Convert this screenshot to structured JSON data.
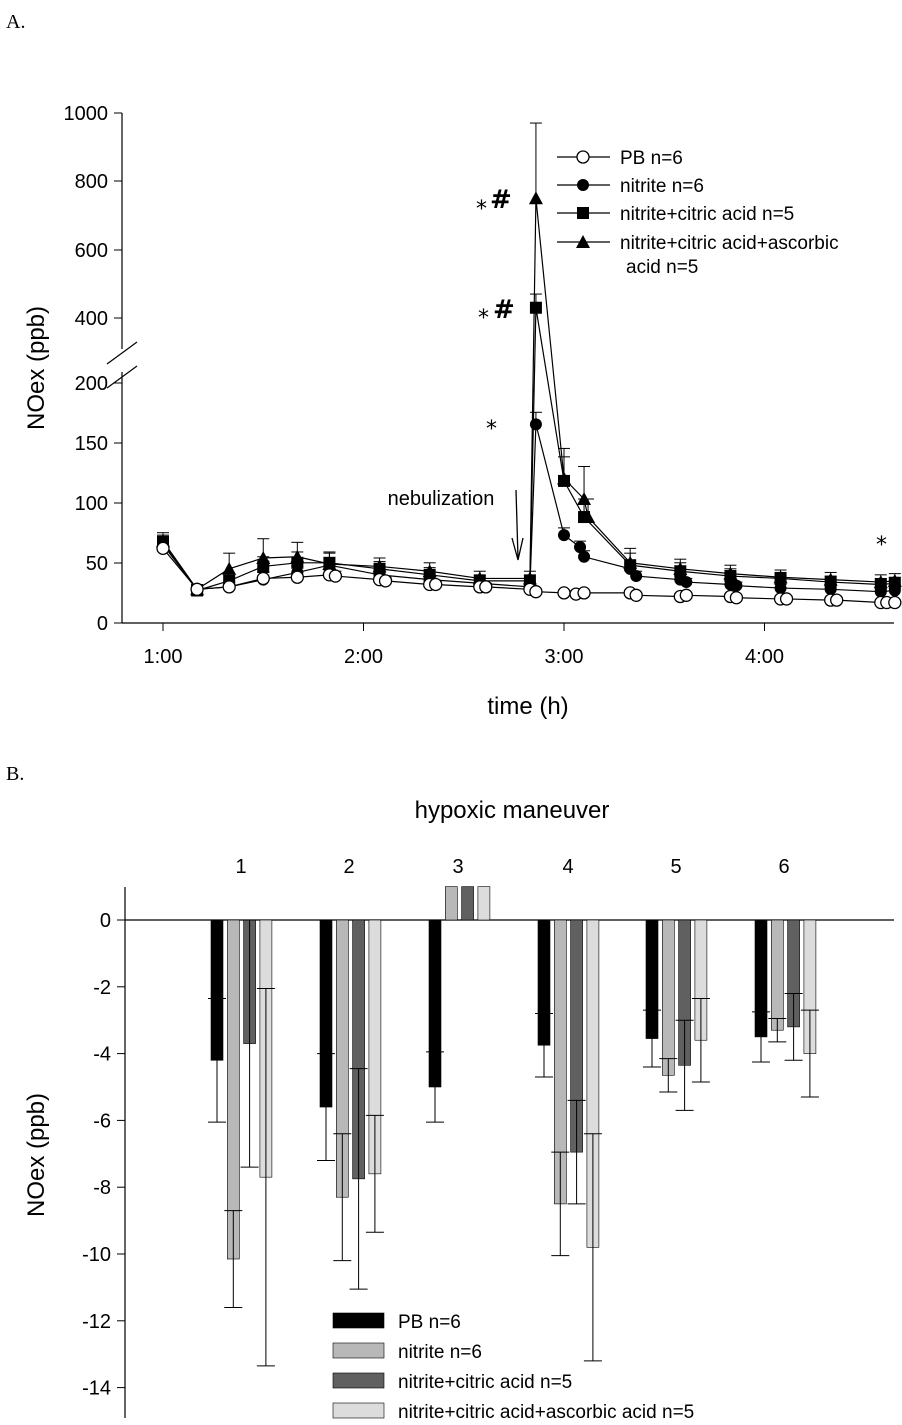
{
  "chart_data": [
    {
      "panel": "A.",
      "type": "line",
      "xlabel": "time (h)",
      "ylabel": "NOex (ppb)",
      "x_unit": "hours",
      "xlim": [
        1.0,
        4.65
      ],
      "x_ticks": [
        {
          "value": 1,
          "label": "1:00"
        },
        {
          "value": 2,
          "label": "2:00"
        },
        {
          "value": 3,
          "label": "3:00"
        },
        {
          "value": 4,
          "label": "4:00"
        }
      ],
      "y_axis_broken": true,
      "y_ticks_lower": [
        "0",
        "50",
        "100",
        "150",
        "200"
      ],
      "y_ticks_upper": [
        "400",
        "600",
        "800",
        "1000"
      ],
      "legend_position": "top-right",
      "series": [
        {
          "name": "PB n=6",
          "marker": "circle-open",
          "x": [
            1.0,
            1.17,
            1.33,
            1.5,
            1.67,
            1.83,
            1.86,
            2.08,
            2.11,
            2.33,
            2.36,
            2.58,
            2.61,
            2.83,
            2.86,
            3.0,
            3.06,
            3.1,
            3.33,
            3.36,
            3.58,
            3.61,
            3.83,
            3.86,
            4.08,
            4.11,
            4.33,
            4.36,
            4.58,
            4.61,
            4.65
          ],
          "y": [
            62,
            28,
            30,
            37,
            38,
            40,
            39,
            36,
            35,
            32,
            32,
            30,
            30,
            28,
            26,
            25,
            24,
            25,
            25,
            23,
            22,
            23,
            22,
            21,
            20,
            20,
            19,
            19,
            17,
            17,
            17
          ],
          "err": [
            6,
            3,
            4,
            5,
            4,
            4,
            4,
            3,
            3,
            3,
            3,
            3,
            3,
            2,
            2,
            2,
            2,
            2,
            2,
            2,
            2,
            2,
            2,
            2,
            2,
            2,
            2,
            2,
            2,
            2,
            2
          ]
        },
        {
          "name": "nitrite n=6",
          "marker": "circle-filled",
          "x": [
            1.0,
            1.17,
            1.33,
            1.5,
            1.67,
            1.83,
            2.08,
            2.33,
            2.58,
            2.83,
            2.86,
            3.0,
            3.08,
            3.1,
            3.33,
            3.36,
            3.58,
            3.61,
            3.83,
            3.86,
            4.08,
            4.33,
            4.58,
            4.65
          ],
          "y": [
            65,
            28,
            30,
            36,
            42,
            48,
            40,
            36,
            33,
            30,
            165,
            73,
            63,
            55,
            45,
            39,
            36,
            34,
            32,
            31,
            29,
            28,
            26,
            27
          ],
          "err": [
            7,
            3,
            4,
            6,
            5,
            6,
            5,
            4,
            4,
            3,
            10,
            6,
            5,
            5,
            4,
            4,
            4,
            3,
            3,
            3,
            3,
            3,
            3,
            3
          ]
        },
        {
          "name": "nitrite+citric acid n=5",
          "marker": "square-filled",
          "x": [
            1.0,
            1.17,
            1.33,
            1.5,
            1.67,
            1.83,
            2.08,
            2.33,
            2.58,
            2.83,
            2.86,
            3.0,
            3.1,
            3.33,
            3.58,
            3.83,
            4.08,
            4.33,
            4.58,
            4.65
          ],
          "y": [
            67,
            27,
            35,
            47,
            50,
            50,
            45,
            40,
            35,
            35,
            430,
            118,
            88,
            48,
            43,
            39,
            37,
            34,
            32,
            33
          ],
          "err": [
            6,
            3,
            6,
            8,
            9,
            8,
            6,
            6,
            5,
            5,
            40,
            20,
            15,
            10,
            7,
            6,
            5,
            5,
            5,
            5
          ]
        },
        {
          "name": "nitrite+citric acid+ascorbic acid n=5",
          "marker": "triangle-filled",
          "x": [
            1.0,
            1.17,
            1.33,
            1.5,
            1.67,
            1.83,
            2.08,
            2.33,
            2.58,
            2.83,
            2.86,
            3.0,
            3.1,
            3.12,
            3.33,
            3.58,
            3.83,
            4.08,
            4.33,
            4.58,
            4.65
          ],
          "y": [
            68,
            28,
            45,
            54,
            55,
            49,
            47,
            43,
            37,
            37,
            750,
            120,
            103,
            88,
            50,
            45,
            41,
            38,
            36,
            34,
            35
          ],
          "err": [
            7,
            4,
            13,
            16,
            12,
            10,
            7,
            7,
            6,
            6,
            220,
            25,
            27,
            15,
            12,
            8,
            7,
            6,
            6,
            6,
            6
          ]
        }
      ],
      "annotations": {
        "nebulization": "nebulization",
        "star": "*",
        "hash": "#"
      }
    },
    {
      "panel": "B.",
      "type": "bar",
      "title": "hypoxic maneuver",
      "ylabel": "NOex (ppb)",
      "categories": [
        "1",
        "2",
        "3",
        "4",
        "5",
        "6"
      ],
      "ylim": [
        -14.8,
        1
      ],
      "y_ticks": [
        "0",
        "-2",
        "-4",
        "-6",
        "-8",
        "-10",
        "-12",
        "-14"
      ],
      "legend_position": "bottom-center",
      "series": [
        {
          "name": "PB n=6",
          "color": "#000000",
          "values": [
            -4.2,
            -5.6,
            -5.0,
            -3.75,
            -3.55,
            -3.5
          ],
          "err": [
            1.85,
            1.6,
            1.05,
            0.95,
            0.85,
            0.75
          ]
        },
        {
          "name": "nitrite n=6",
          "color": "#b8b8b8",
          "values": [
            -10.15,
            -8.3,
            1.0,
            -8.5,
            -4.65,
            -3.3
          ],
          "err": [
            1.45,
            1.9,
            null,
            1.55,
            0.5,
            0.35
          ]
        },
        {
          "name": "nitrite+citric acid n=5",
          "color": "#606060",
          "values": [
            -3.7,
            -7.75,
            1.0,
            -6.95,
            -4.35,
            -3.2
          ],
          "err": [
            3.7,
            3.3,
            null,
            1.55,
            1.35,
            1.0
          ]
        },
        {
          "name": "nitrite+citric acid+ascorbic acid n=5",
          "color": "#dcdcdc",
          "values": [
            -7.7,
            -7.6,
            1.0,
            -9.8,
            -3.6,
            -4.0
          ],
          "err": [
            5.65,
            1.75,
            null,
            3.4,
            1.25,
            1.3
          ]
        }
      ]
    }
  ]
}
